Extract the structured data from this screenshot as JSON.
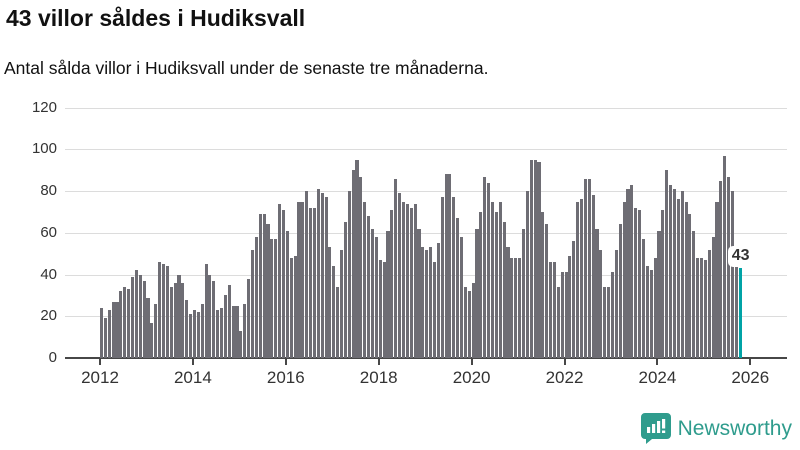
{
  "header": {
    "title": "43 villor såldes i Hudiksvall",
    "subtitle": "Antal sålda villor i Hudiksvall under de senaste tre månaderna."
  },
  "branding": {
    "logo_text": "Newsworthy",
    "logo_icon": "bar-chart-speech-bubble-icon",
    "logo_color": "#2f9c8d"
  },
  "colors": {
    "bar": "#6e6d74",
    "highlight": "#00a3a6",
    "grid": "#dcdcdc",
    "axis": "#474747",
    "text": "#333333"
  },
  "chart_data": {
    "type": "bar",
    "title": "43 villor såldes i Hudiksvall",
    "subtitle": "Antal sålda villor i Hudiksvall under de senaste tre månaderna.",
    "unit": "sålda villor (rullande 3 månader)",
    "frequency": "monthly",
    "x_start": "2012-01",
    "x_end": "2025-10",
    "values": [
      24,
      19,
      23,
      27,
      27,
      32,
      34,
      33,
      39,
      42,
      40,
      37,
      29,
      17,
      26,
      46,
      45,
      44,
      34,
      36,
      40,
      36,
      28,
      21,
      23,
      22,
      26,
      45,
      40,
      37,
      23,
      24,
      30,
      35,
      25,
      25,
      13,
      26,
      38,
      52,
      58,
      69,
      69,
      64,
      57,
      57,
      74,
      71,
      61,
      48,
      49,
      75,
      75,
      80,
      72,
      72,
      81,
      79,
      77,
      53,
      44,
      34,
      52,
      65,
      80,
      90,
      95,
      87,
      75,
      68,
      62,
      58,
      47,
      46,
      61,
      71,
      86,
      79,
      75,
      74,
      72,
      74,
      62,
      53,
      52,
      53,
      46,
      55,
      77,
      88,
      88,
      77,
      67,
      58,
      34,
      32,
      36,
      62,
      70,
      87,
      84,
      75,
      70,
      75,
      65,
      53,
      48,
      48,
      48,
      62,
      80,
      95,
      95,
      94,
      70,
      64,
      46,
      46,
      34,
      41,
      41,
      49,
      56,
      75,
      76,
      86,
      86,
      78,
      62,
      52,
      34,
      34,
      41,
      52,
      64,
      75,
      81,
      83,
      72,
      71,
      57,
      44,
      42,
      48,
      61,
      71,
      90,
      83,
      81,
      76,
      80,
      75,
      69,
      61,
      48,
      48,
      47,
      52,
      58,
      75,
      85,
      97,
      87,
      80,
      50,
      43
    ],
    "highlight_last_bar": true,
    "annotation": {
      "text": "43",
      "bar_index": 165
    },
    "ylim": [
      0,
      120
    ],
    "yticks": [
      0,
      20,
      40,
      60,
      80,
      100,
      120
    ],
    "xticks": [
      2012,
      2014,
      2016,
      2018,
      2020,
      2022,
      2024,
      2026
    ],
    "grid": true,
    "legend": false
  }
}
